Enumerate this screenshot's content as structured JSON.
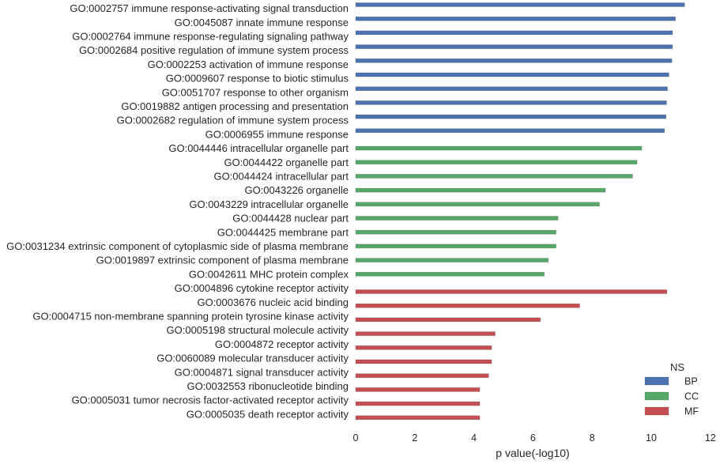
{
  "chart_data": {
    "type": "bar",
    "orientation": "horizontal",
    "title": "",
    "xlabel": "p value(-log10)",
    "ylabel": "",
    "xlim": [
      0,
      12
    ],
    "xticks": [
      0,
      2,
      4,
      6,
      8,
      10,
      12
    ],
    "grid": false,
    "legend": {
      "title": "NS",
      "placement": "bottom-right",
      "entries": [
        {
          "label": "BP",
          "color": "#4c72b0"
        },
        {
          "label": "CC",
          "color": "#55a868"
        },
        {
          "label": "MF",
          "color": "#c44e52"
        }
      ]
    },
    "categories": [
      "GO:0002757 immune response-activating signal transduction",
      "GO:0045087 innate immune response",
      "GO:0002764 immune response-regulating signaling pathway",
      "GO:0002684 positive regulation of immune system process",
      "GO:0002253 activation of immune response",
      "GO:0009607 response to biotic stimulus",
      "GO:0051707 response to other organism",
      "GO:0019882 antigen processing and presentation",
      "GO:0002682 regulation of immune system process",
      "GO:0006955 immune response",
      "GO:0044446 intracellular organelle part",
      "GO:0044422 organelle part",
      "GO:0044424 intracellular part",
      "GO:0043226 organelle",
      "GO:0043229 intracellular organelle",
      "GO:0044428 nuclear part",
      "GO:0044425 membrane part",
      "GO:0031234 extrinsic component of cytoplasmic side of plasma membrane",
      "GO:0019897 extrinsic component of plasma membrane",
      "GO:0042611 MHC protein complex",
      "GO:0004896 cytokine receptor activity",
      "GO:0003676 nucleic acid binding",
      "GO:0004715 non-membrane spanning protein tyrosine kinase activity",
      "GO:0005198 structural molecule activity",
      "GO:0004872 receptor activity",
      "GO:0060089 molecular transducer activity",
      "GO:0004871 signal transducer activity",
      "GO:0032553 ribonucleotide binding",
      "GO:0005031 tumor necrosis factor-activated receptor activity",
      "GO:0005035 death receptor activity"
    ],
    "series": [
      {
        "name": "BP",
        "color": "#4c72b0",
        "values": [
          11.13,
          10.82,
          10.72,
          10.72,
          10.7,
          10.6,
          10.55,
          10.52,
          10.5,
          10.45,
          null,
          null,
          null,
          null,
          null,
          null,
          null,
          null,
          null,
          null,
          null,
          null,
          null,
          null,
          null,
          null,
          null,
          null,
          null,
          null
        ]
      },
      {
        "name": "CC",
        "color": "#55a868",
        "values": [
          null,
          null,
          null,
          null,
          null,
          null,
          null,
          null,
          null,
          null,
          9.68,
          9.52,
          9.37,
          8.45,
          8.25,
          6.85,
          6.78,
          6.78,
          6.52,
          6.38,
          null,
          null,
          null,
          null,
          null,
          null,
          null,
          null,
          null,
          null
        ]
      },
      {
        "name": "MF",
        "color": "#c44e52",
        "values": [
          null,
          null,
          null,
          null,
          null,
          null,
          null,
          null,
          null,
          null,
          null,
          null,
          null,
          null,
          null,
          null,
          null,
          null,
          null,
          null,
          10.53,
          7.58,
          6.25,
          4.72,
          4.6,
          4.6,
          4.5,
          4.2,
          4.2,
          4.2
        ]
      }
    ]
  }
}
